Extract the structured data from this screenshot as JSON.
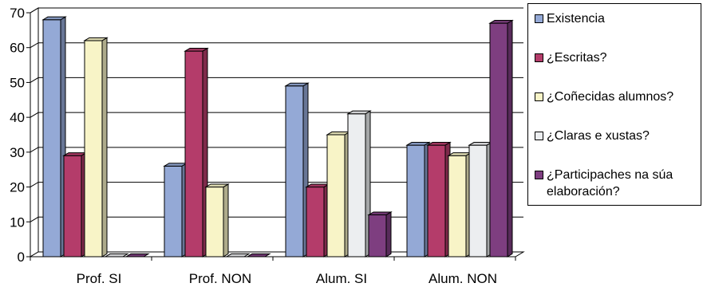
{
  "chart_data": {
    "type": "bar",
    "title": "",
    "xlabel": "",
    "ylabel": "",
    "ylim": [
      0,
      70
    ],
    "yticks": [
      "0",
      "10",
      "20",
      "30",
      "40",
      "50",
      "60",
      "70"
    ],
    "grid": true,
    "legend_position": "right",
    "categories": [
      "Prof. SI",
      "Prof. NON",
      "Alum. SI",
      "Alum. NON"
    ],
    "series": [
      {
        "name": "Existencia",
        "color": "#94A9D6",
        "values": [
          68,
          26,
          49,
          32
        ]
      },
      {
        "name": "¿Escritas?",
        "color": "#B43C6A",
        "values": [
          29,
          59,
          20,
          32
        ]
      },
      {
        "name": "¿Coñecidas alumnos?",
        "color": "#F8F4C7",
        "values": [
          62,
          20,
          35,
          29
        ]
      },
      {
        "name": "¿Claras e xustas?",
        "color": "#ECEEF0",
        "values": [
          0,
          0,
          41,
          32
        ]
      },
      {
        "name": "¿Participaches na súa elaboración?",
        "color": "#7E3E80",
        "values": [
          0,
          0,
          12,
          67
        ]
      }
    ]
  }
}
